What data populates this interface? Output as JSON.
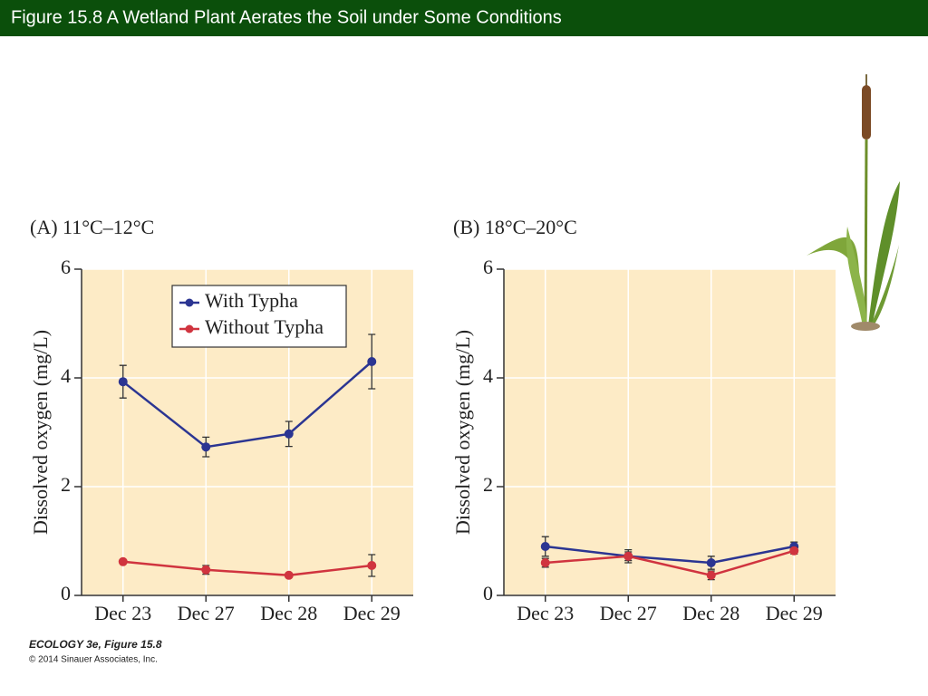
{
  "header": {
    "title": "Figure 15.8  A Wetland Plant Aerates the Soil under Some Conditions"
  },
  "chart_data": [
    {
      "type": "line",
      "title": "(A)  11°C–12°C",
      "ylabel": "Dissolved oxygen (mg/L)",
      "categories": [
        "Dec 23",
        "Dec 27",
        "Dec 28",
        "Dec 29"
      ],
      "ylim": [
        0,
        6
      ],
      "yticks": [
        0,
        2,
        4,
        6
      ],
      "grid": true,
      "legend": "upper center",
      "series": [
        {
          "name": "With Typha",
          "color": "#2b3592",
          "values": [
            3.93,
            2.73,
            2.97,
            4.3
          ],
          "errors": [
            0.3,
            0.18,
            0.23,
            0.5
          ]
        },
        {
          "name": "Without Typha",
          "color": "#d0343f",
          "values": [
            0.62,
            0.47,
            0.37,
            0.55
          ],
          "errors": [
            0.03,
            0.08,
            0.03,
            0.2
          ]
        }
      ]
    },
    {
      "type": "line",
      "title": "(B)  18°C–20°C",
      "ylabel": "Dissolved oxygen (mg/L)",
      "categories": [
        "Dec 23",
        "Dec 27",
        "Dec 28",
        "Dec 29"
      ],
      "ylim": [
        0,
        6
      ],
      "yticks": [
        0,
        2,
        4,
        6
      ],
      "grid": true,
      "series": [
        {
          "color": "#2b3592",
          "values": [
            0.9,
            0.72,
            0.6,
            0.9
          ],
          "errors": [
            0.18,
            0.08,
            0.12,
            0.08
          ]
        },
        {
          "color": "#d0343f",
          "values": [
            0.6,
            0.72,
            0.37,
            0.82
          ],
          "errors": [
            0.08,
            0.12,
            0.08,
            0.06
          ]
        }
      ]
    }
  ],
  "footer": {
    "book": "ECOLOGY 3e, Figure 15.8",
    "copyright": "© 2014 Sinauer Associates, Inc."
  }
}
